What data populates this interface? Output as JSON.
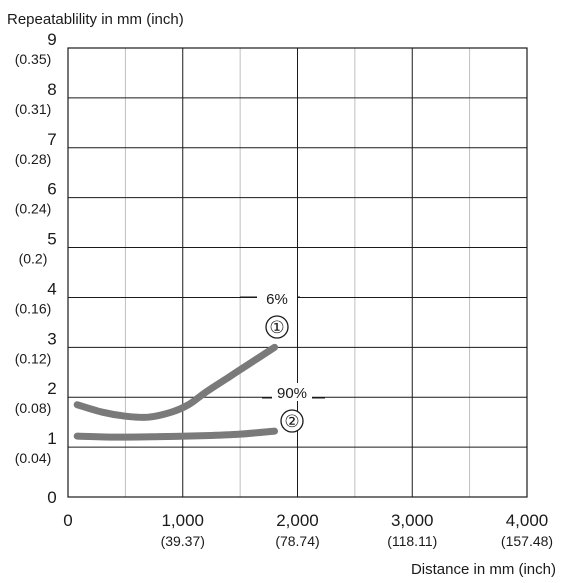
{
  "chart_data": {
    "type": "line",
    "ylabel": "Repeatablility in mm (inch)",
    "xlabel": "Distance in mm (inch)",
    "xlim": [
      0,
      4000
    ],
    "ylim": [
      0,
      9
    ],
    "grid": true,
    "x_ticks": [
      {
        "value": 0,
        "label": "0",
        "sub": ""
      },
      {
        "value": 1000,
        "label": "1,000",
        "sub": "(39.37)"
      },
      {
        "value": 2000,
        "label": "2,000",
        "sub": "(78.74)"
      },
      {
        "value": 3000,
        "label": "3,000",
        "sub": "(118.11)"
      },
      {
        "value": 4000,
        "label": "4,000",
        "sub": "(157.48)"
      }
    ],
    "y_ticks": [
      {
        "value": 0,
        "label": "0",
        "sub": ""
      },
      {
        "value": 1,
        "label": "1",
        "sub": "(0.04)"
      },
      {
        "value": 2,
        "label": "2",
        "sub": "(0.08)"
      },
      {
        "value": 3,
        "label": "3",
        "sub": "(0.12)"
      },
      {
        "value": 4,
        "label": "4",
        "sub": "(0.16)"
      },
      {
        "value": 5,
        "label": "5",
        "sub": "(0.2)"
      },
      {
        "value": 6,
        "label": "6",
        "sub": "(0.24)"
      },
      {
        "value": 7,
        "label": "7",
        "sub": "(0.28)"
      },
      {
        "value": 8,
        "label": "8",
        "sub": "(0.31)"
      },
      {
        "value": 9,
        "label": "9",
        "sub": "(0.35)"
      }
    ],
    "minor_x_gridlines": [
      500,
      1500,
      2500,
      3500
    ],
    "series": [
      {
        "name": "6%",
        "marker": "①",
        "color": "#7a7a7a",
        "points": [
          [
            80,
            1.85
          ],
          [
            300,
            1.7
          ],
          [
            500,
            1.62
          ],
          [
            700,
            1.6
          ],
          [
            900,
            1.7
          ],
          [
            1050,
            1.85
          ],
          [
            1200,
            2.1
          ],
          [
            1400,
            2.4
          ],
          [
            1600,
            2.7
          ],
          [
            1800,
            3.0
          ]
        ]
      },
      {
        "name": "90%",
        "marker": "②",
        "color": "#7a7a7a",
        "points": [
          [
            80,
            1.22
          ],
          [
            400,
            1.2
          ],
          [
            800,
            1.21
          ],
          [
            1200,
            1.23
          ],
          [
            1500,
            1.26
          ],
          [
            1800,
            1.32
          ]
        ]
      }
    ]
  }
}
